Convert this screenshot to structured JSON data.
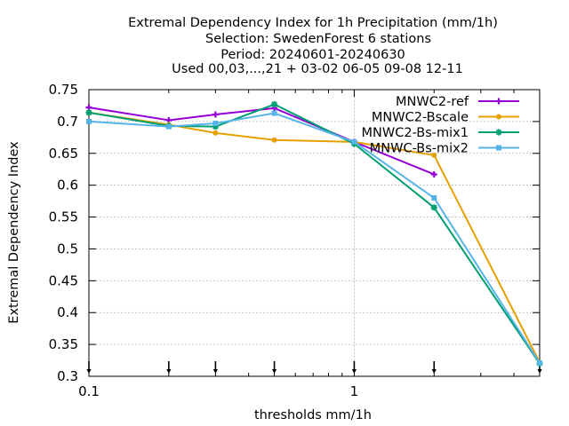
{
  "chart_data": {
    "type": "line",
    "title_lines": [
      "Extremal Dependency Index  for 1h Precipitation (mm/1h)",
      "Selection: SwedenForest      6 stations",
      "Period: 20240601-20240630",
      "Used 00,03,...,21 + 03-02 06-05 09-08 12-11"
    ],
    "xlabel": "thresholds mm/1h",
    "ylabel": "Extremal Dependency Index",
    "xscale": "log",
    "xlim": [
      0.1,
      5
    ],
    "ylim": [
      0.3,
      0.75
    ],
    "x_tick_labels": [
      {
        "value": 0.1,
        "label": "0.1"
      },
      {
        "value": 1,
        "label": "1"
      }
    ],
    "y_tick_labels": [
      {
        "value": 0.3,
        "label": "0.3"
      },
      {
        "value": 0.35,
        "label": "0.35"
      },
      {
        "value": 0.4,
        "label": "0.4"
      },
      {
        "value": 0.45,
        "label": "0.45"
      },
      {
        "value": 0.5,
        "label": "0.5"
      },
      {
        "value": 0.55,
        "label": "0.55"
      },
      {
        "value": 0.6,
        "label": "0.6"
      },
      {
        "value": 0.65,
        "label": "0.65"
      },
      {
        "value": 0.7,
        "label": "0.7"
      },
      {
        "value": 0.75,
        "label": "0.75"
      }
    ],
    "grid_x": [
      1
    ],
    "threshold_arrows": [
      0.1,
      0.2,
      0.3,
      0.5,
      1,
      2,
      5
    ],
    "legend_position": "top-right",
    "series": [
      {
        "name": "MNWC2-ref",
        "color": "#9400d3",
        "marker": "plus",
        "x": [
          0.1,
          0.2,
          0.3,
          0.5,
          1,
          2
        ],
        "y": [
          0.722,
          0.702,
          0.711,
          0.721,
          0.668,
          0.617
        ]
      },
      {
        "name": "MNWC2-Bscale",
        "color": "#e69f00",
        "marker": "circle",
        "x": [
          0.1,
          0.2,
          0.3,
          0.5,
          1,
          2,
          5
        ],
        "y": [
          0.714,
          0.695,
          0.682,
          0.671,
          0.668,
          0.647,
          0.322
        ]
      },
      {
        "name": "MNWC2-Bs-mix1",
        "color": "#009e73",
        "marker": "star",
        "x": [
          0.1,
          0.2,
          0.3,
          0.5,
          1,
          2,
          5
        ],
        "y": [
          0.714,
          0.693,
          0.692,
          0.727,
          0.665,
          0.565,
          0.32
        ]
      },
      {
        "name": "MNWC-Bs-mix2",
        "color": "#56b4e9",
        "marker": "square",
        "x": [
          0.1,
          0.2,
          0.3,
          0.5,
          1,
          2,
          5
        ],
        "y": [
          0.7,
          0.692,
          0.697,
          0.713,
          0.668,
          0.58,
          0.321
        ]
      }
    ]
  }
}
